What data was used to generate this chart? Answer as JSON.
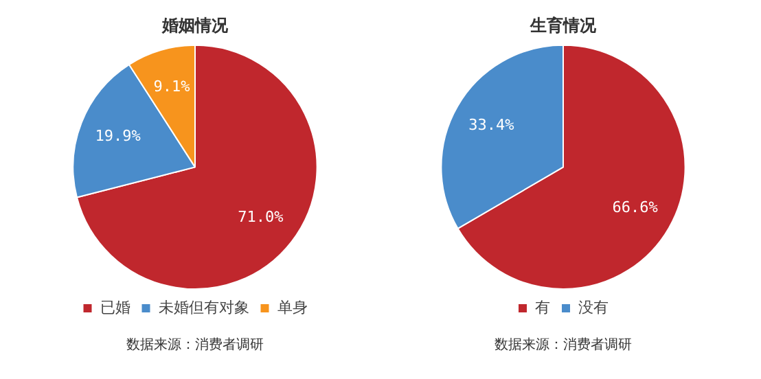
{
  "chart_data": [
    {
      "type": "pie",
      "title": "婚姻情况",
      "categories": [
        "已婚",
        "未婚但有对象",
        "单身"
      ],
      "values": [
        71.0,
        19.9,
        9.1
      ],
      "colors": [
        "#c0272d",
        "#4a8ccb",
        "#f7941d"
      ],
      "value_labels": [
        "71.0%",
        "19.9%",
        "9.1%"
      ],
      "legend": "bottom",
      "annotations": [
        "数据来源：消费者调研"
      ]
    },
    {
      "type": "pie",
      "title": "生育情况",
      "categories": [
        "有",
        "没有"
      ],
      "values": [
        66.6,
        33.4
      ],
      "colors": [
        "#c0272d",
        "#4a8ccb"
      ],
      "value_labels": [
        "66.6%",
        "33.4%"
      ],
      "legend": "bottom",
      "annotations": [
        "数据来源：消费者调研"
      ]
    }
  ]
}
